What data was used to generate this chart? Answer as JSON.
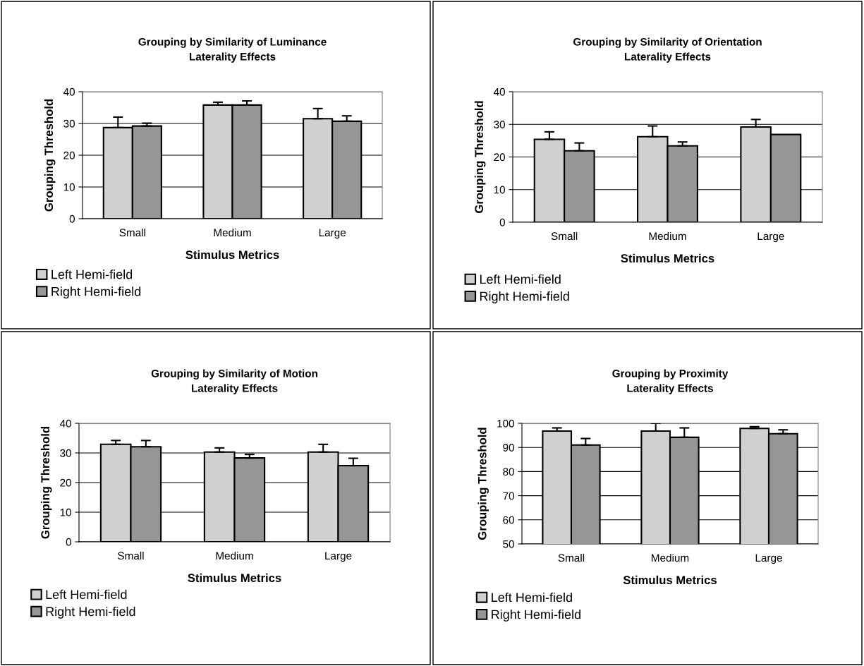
{
  "chart_data": [
    {
      "type": "bar",
      "title": "Grouping by Similarity of Luminance\nLaterality Effects",
      "xlabel": "Stimulus Metrics",
      "ylabel": "Grouping Threshold",
      "categories": [
        "Small",
        "Medium",
        "Large"
      ],
      "ylim": [
        0,
        40
      ],
      "yticks": [
        0,
        10,
        20,
        30,
        40
      ],
      "grid": "y",
      "legend": "bottom left",
      "series": [
        {
          "name": "Left Hemi-field",
          "color": "#d0d0d0",
          "values": [
            28.7,
            35.8,
            31.5
          ],
          "errors": [
            [
              28.7,
              32.0
            ],
            [
              35.8,
              36.7
            ],
            [
              31.5,
              34.7
            ]
          ]
        },
        {
          "name": "Right Hemi-field",
          "color": "#969696",
          "values": [
            29.2,
            35.8,
            30.7
          ],
          "errors": [
            [
              29.2,
              30.1
            ],
            [
              35.8,
              37.1
            ],
            [
              30.7,
              32.4
            ]
          ]
        }
      ]
    },
    {
      "type": "bar",
      "title": "Grouping by Similarity of Orientation\nLaterality Effects",
      "xlabel": "Stimulus Metrics",
      "ylabel": "Grouping Threshold",
      "categories": [
        "Small",
        "Medium",
        "Large"
      ],
      "ylim": [
        0,
        40
      ],
      "yticks": [
        0,
        10,
        20,
        30,
        40
      ],
      "grid": "y",
      "legend": "bottom left",
      "series": [
        {
          "name": "Left Hemi-field",
          "color": "#d0d0d0",
          "values": [
            25.4,
            26.2,
            29.2
          ],
          "errors": [
            [
              25.4,
              27.7
            ],
            [
              26.2,
              29.5
            ],
            [
              29.2,
              31.5
            ]
          ]
        },
        {
          "name": "Right Hemi-field",
          "color": "#969696",
          "values": [
            21.9,
            23.4,
            26.9
          ],
          "errors": [
            [
              21.9,
              24.3
            ],
            [
              23.4,
              24.6
            ],
            null
          ]
        }
      ]
    },
    {
      "type": "bar",
      "title": "Grouping by Similarity of Motion\nLaterality Effects",
      "xlabel": "Stimulus Metrics",
      "ylabel": "Grouping Threshold",
      "categories": [
        "Small",
        "Medium",
        "Large"
      ],
      "ylim": [
        0,
        40
      ],
      "yticks": [
        0,
        10,
        20,
        30,
        40
      ],
      "grid": "y",
      "legend": "bottom left",
      "series": [
        {
          "name": "Left Hemi-field",
          "color": "#d0d0d0",
          "values": [
            32.9,
            30.3,
            30.3
          ],
          "errors": [
            [
              32.9,
              34.2
            ],
            [
              30.3,
              31.7
            ],
            [
              30.3,
              32.9
            ]
          ]
        },
        {
          "name": "Right Hemi-field",
          "color": "#969696",
          "values": [
            32.1,
            28.3,
            25.7
          ],
          "errors": [
            [
              32.1,
              34.2
            ],
            [
              28.3,
              29.5
            ],
            [
              25.7,
              28.2
            ]
          ]
        }
      ]
    },
    {
      "type": "bar",
      "title": "Grouping by Proximity\nLaterality Effects",
      "xlabel": "Stimulus Metrics",
      "ylabel": "Grouping Threshold",
      "categories": [
        "Small",
        "Medium",
        "Large"
      ],
      "ylim": [
        50,
        100
      ],
      "yticks": [
        50,
        60,
        70,
        80,
        90,
        100
      ],
      "grid": "y",
      "legend": "bottom left",
      "series": [
        {
          "name": "Left Hemi-field",
          "color": "#d0d0d0",
          "values": [
            96.8,
            96.8,
            97.9
          ],
          "errors": [
            [
              96.8,
              98.1
            ],
            [
              96.8,
              100
            ],
            [
              97.9,
              98.6
            ]
          ]
        },
        {
          "name": "Right Hemi-field",
          "color": "#969696",
          "values": [
            91.0,
            94.2,
            95.7
          ],
          "errors": [
            [
              91.0,
              93.7
            ],
            [
              94.2,
              98.1
            ],
            [
              95.7,
              97.3
            ]
          ]
        }
      ]
    }
  ]
}
